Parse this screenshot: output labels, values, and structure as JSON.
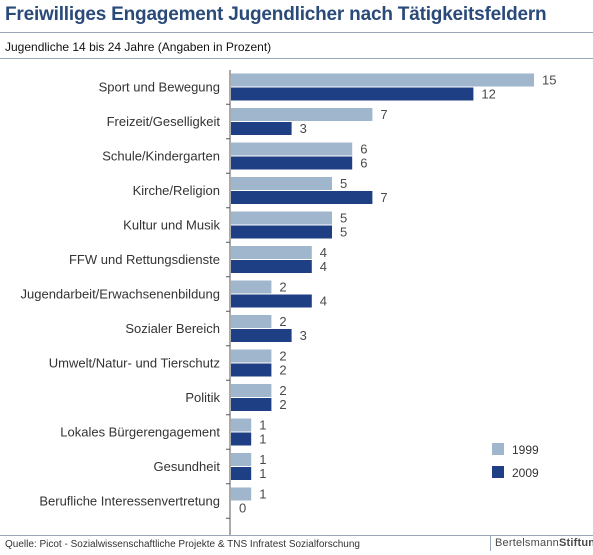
{
  "header": {
    "title": "Freiwilliges Engagement Jugendlicher nach Tätigkeitsfeldern",
    "subtitle": "Jugendliche 14 bis 24 Jahre (Angaben in Prozent)"
  },
  "footer": {
    "source": "Quelle: Picot - Sozialwissenschaftliche Projekte & TNS Infratest Sozialforschung",
    "brand_part1": "Bertelsmann",
    "brand_part2": "Stiftung"
  },
  "colors": {
    "series_1999": "#9fb6cd",
    "series_2009": "#1f3f85",
    "axis": "#555555",
    "value_label": "#4a4a4a",
    "title": "#2a4a7a"
  },
  "chart_data": {
    "type": "bar",
    "orientation": "horizontal",
    "categories": [
      "Sport und Bewegung",
      "Freizeit/Geselligkeit",
      "Schule/Kindergarten",
      "Kirche/Religion",
      "Kultur und Musik",
      "FFW und Rettungsdienste",
      "Jugendarbeit/Erwachsenenbildung",
      "Sozialer Bereich",
      "Umwelt/Natur- und Tierschutz",
      "Politik",
      "Lokales Bürgerengagement",
      "Gesundheit",
      "Berufliche Interessenvertretung"
    ],
    "series": [
      {
        "name": "1999",
        "values": [
          15,
          7,
          6,
          5,
          5,
          4,
          2,
          2,
          2,
          2,
          1,
          1,
          1
        ]
      },
      {
        "name": "2009",
        "values": [
          12,
          3,
          6,
          7,
          5,
          4,
          4,
          3,
          2,
          2,
          1,
          1,
          0
        ]
      }
    ],
    "xlim": [
      0,
      15
    ],
    "grid": false,
    "legend_position": "bottom-right",
    "title": "Freiwilliges Engagement Jugendlicher nach Tätigkeitsfeldern",
    "subtitle": "Jugendliche 14 bis 24 Jahre (Angaben in Prozent)"
  }
}
